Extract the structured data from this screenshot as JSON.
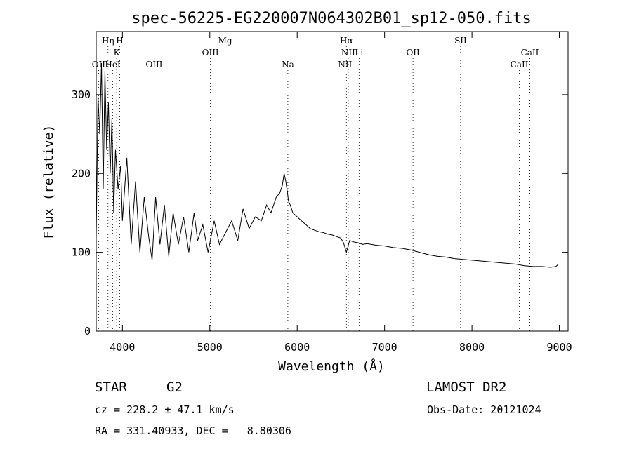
{
  "chart_data": {
    "type": "line",
    "title": "spec-56225-EG220007N064302B01_sp12-050.fits",
    "xlabel": "Wavelength (Å)",
    "ylabel": "Flux (relative)",
    "xlim": [
      3700,
      9100
    ],
    "ylim": [
      0,
      380
    ],
    "xticks": [
      4000,
      5000,
      6000,
      7000,
      8000,
      9000
    ],
    "yticks": [
      0,
      100,
      200,
      300
    ],
    "grid": false,
    "series": [
      {
        "x": [
          3700,
          3720,
          3740,
          3760,
          3780,
          3800,
          3820,
          3840,
          3860,
          3880,
          3900,
          3920,
          3950,
          3980,
          4000,
          4050,
          4100,
          4150,
          4200,
          4250,
          4300,
          4340,
          4380,
          4430,
          4480,
          4530,
          4580,
          4640,
          4700,
          4760,
          4820,
          4860,
          4920,
          4980,
          5050,
          5110,
          5180,
          5250,
          5320,
          5380,
          5450,
          5520,
          5590,
          5650,
          5700,
          5760,
          5800,
          5830,
          5850,
          5870,
          5890,
          5900,
          5920,
          5950,
          6000,
          6050,
          6100,
          6150,
          6200,
          6250,
          6300,
          6350,
          6400,
          6450,
          6500,
          6530,
          6563,
          6600,
          6650,
          6700,
          6750,
          6800,
          6850,
          6900,
          7000,
          7100,
          7200,
          7300,
          7400,
          7500,
          7600,
          7700,
          7800,
          7900,
          8000,
          8100,
          8200,
          8300,
          8400,
          8500,
          8550,
          8600,
          8700,
          8800,
          8900,
          8960,
          8990
        ],
        "y": [
          120,
          300,
          250,
          340,
          180,
          330,
          230,
          290,
          200,
          270,
          150,
          230,
          180,
          210,
          140,
          220,
          110,
          190,
          100,
          170,
          120,
          90,
          170,
          110,
          160,
          95,
          150,
          110,
          145,
          100,
          150,
          115,
          135,
          100,
          140,
          110,
          125,
          140,
          115,
          155,
          130,
          145,
          140,
          160,
          150,
          170,
          175,
          185,
          200,
          190,
          175,
          165,
          160,
          150,
          145,
          140,
          135,
          130,
          128,
          126,
          125,
          123,
          122,
          120,
          118,
          112,
          100,
          115,
          113,
          112,
          110,
          111,
          110,
          109,
          108,
          106,
          105,
          103,
          100,
          97,
          95,
          94,
          92,
          91,
          90,
          89,
          88,
          87,
          86,
          85,
          84,
          83,
          82,
          82,
          81,
          82,
          85
        ]
      }
    ],
    "lines": [
      {
        "label": "OII",
        "x": 3727,
        "row": 3
      },
      {
        "label": "Hη",
        "x": 3835,
        "row": 1
      },
      {
        "label": "H",
        "x": 3969,
        "row": 1
      },
      {
        "label": "K",
        "x": 3934,
        "row": 2
      },
      {
        "label": "HeI",
        "x": 3889,
        "row": 3
      },
      {
        "label": "OIII",
        "x": 4363,
        "row": 3
      },
      {
        "label": "OIII",
        "x": 5007,
        "row": 2
      },
      {
        "label": "Mg",
        "x": 5175,
        "row": 1
      },
      {
        "label": "Na",
        "x": 5893,
        "row": 3
      },
      {
        "label": "Hα",
        "x": 6563,
        "row": 1
      },
      {
        "label": "NII",
        "x": 6584,
        "row": 2
      },
      {
        "label": "Li",
        "x": 6708,
        "row": 2
      },
      {
        "label": "NII",
        "x": 6548,
        "row": 3
      },
      {
        "label": "OII",
        "x": 7325,
        "row": 2
      },
      {
        "label": "SII",
        "x": 7870,
        "row": 1
      },
      {
        "label": "CaII",
        "x": 8662,
        "row": 2
      },
      {
        "label": "CaII",
        "x": 8542,
        "row": 3
      }
    ]
  },
  "info": {
    "class": "STAR",
    "subclass": "G2",
    "survey": "LAMOST DR2",
    "cz": "cz = 228.2 ± 47.1 km/s",
    "obs_date": "Obs-Date: 20121024",
    "radec": "RA = 331.40933, DEC =   8.80306"
  }
}
